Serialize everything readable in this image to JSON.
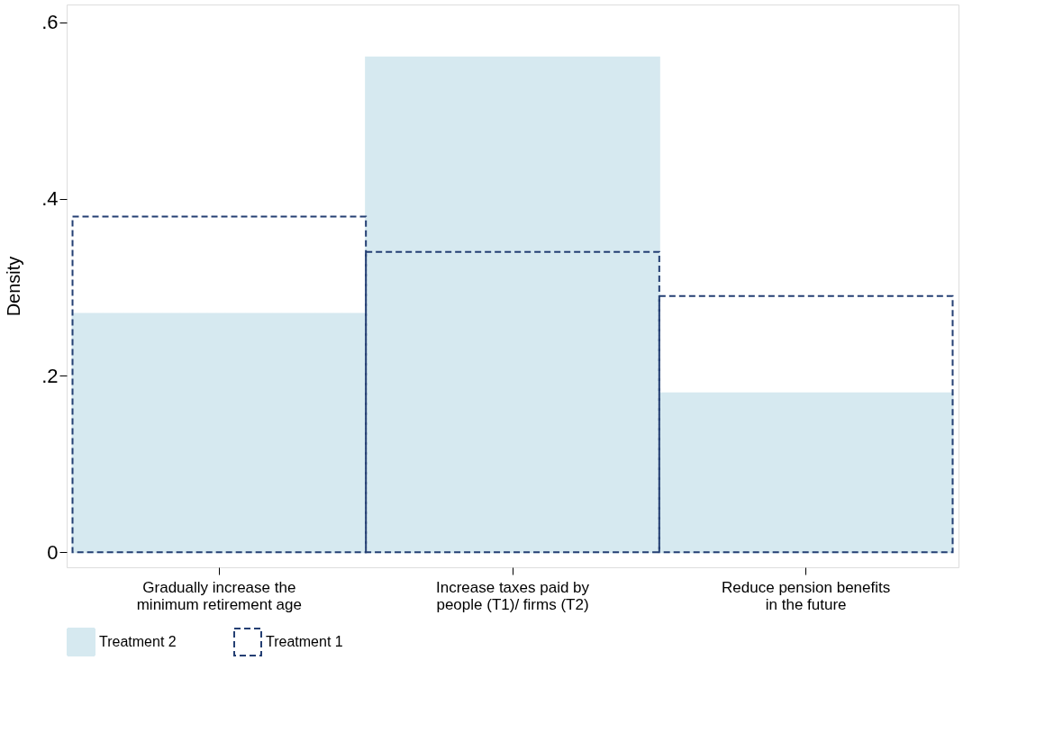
{
  "chart_data": {
    "type": "bar",
    "ylabel": "Density",
    "categories": [
      "Gradually increase the minimum retirement age",
      "Increase taxes paid by people (T1)/ firms (T2)",
      "Reduce pension benefits in the future"
    ],
    "series": [
      {
        "name": "Treatment 2",
        "color": "#d6e9f0",
        "values": [
          0.27,
          0.56,
          0.18
        ]
      },
      {
        "name": "Treatment 1",
        "color": "#243f73",
        "line_style": "dashed",
        "values": [
          0.38,
          0.34,
          0.29
        ]
      }
    ],
    "ylim": [
      -0.017,
      0.62
    ],
    "yticks": [
      0,
      {
        "value": 0.2,
        "label": ".2"
      },
      {
        "value": 0.4,
        "label": ".4"
      },
      {
        "value": 0.6,
        "label": ".6"
      }
    ],
    "grid": false,
    "legend": "bottom"
  }
}
